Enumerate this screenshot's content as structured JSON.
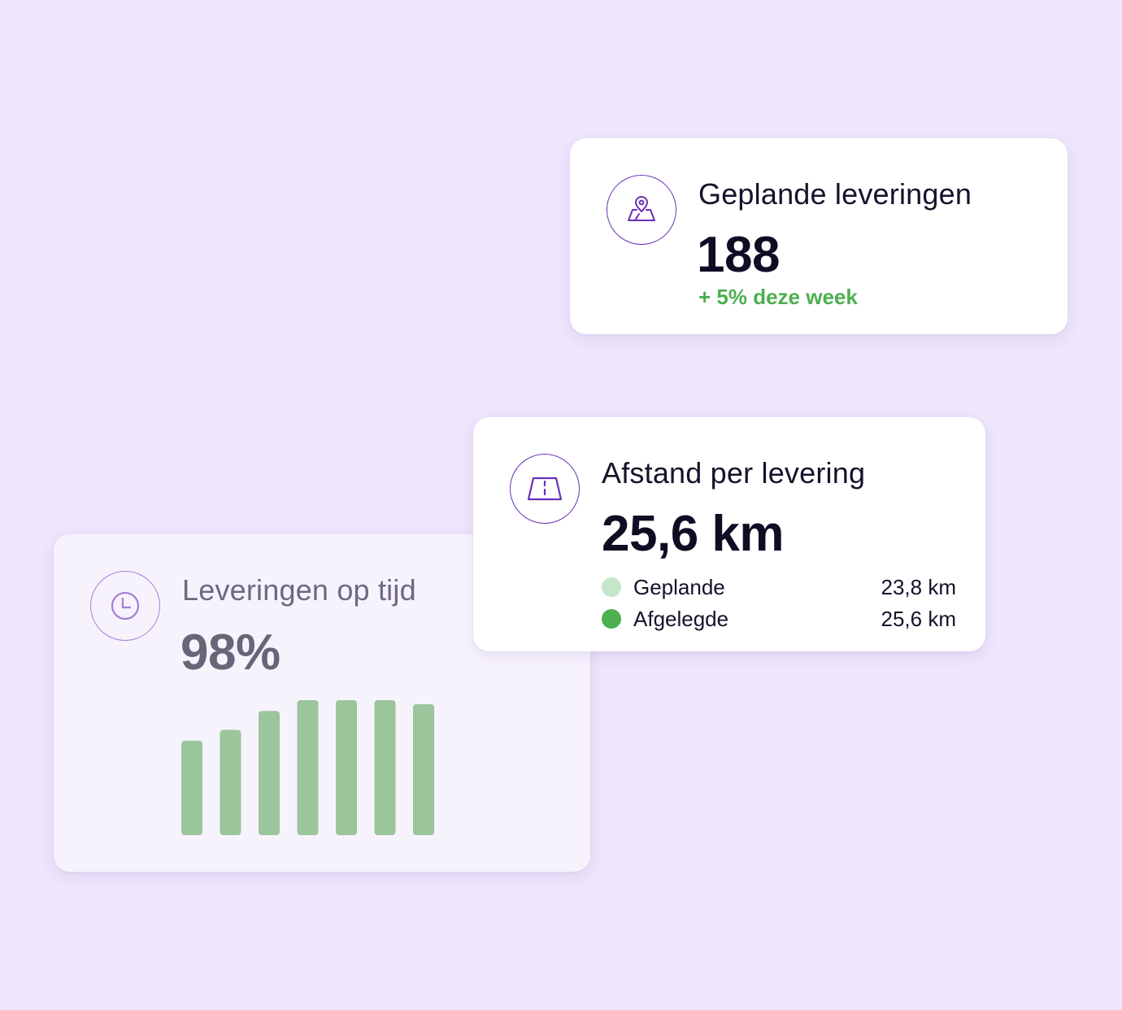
{
  "colors": {
    "background": "#eee6fb",
    "accent_purple": "#6b2fb8",
    "positive_green": "#4caf50",
    "bar_green": "#9bc69b",
    "planned_dot": "#c5e6c8",
    "traveled_dot": "#4caf50"
  },
  "planned_card": {
    "icon": "map-pin-icon",
    "title": "Geplande leveringen",
    "value": "188",
    "delta": "+ 5% deze week"
  },
  "distance_card": {
    "icon": "road-icon",
    "title": "Afstand per levering",
    "value": "25,6 km",
    "legend": [
      {
        "label": "Geplande",
        "value": "23,8 km"
      },
      {
        "label": "Afgelegde",
        "value": "25,6 km"
      }
    ]
  },
  "ontime_card": {
    "icon": "clock-icon",
    "title": "Leveringen op tijd",
    "value": "98%"
  },
  "chart_data": {
    "type": "bar",
    "values": [
      0.7,
      0.78,
      0.92,
      1.0,
      1.0,
      1.0,
      0.97
    ],
    "grid": false
  }
}
